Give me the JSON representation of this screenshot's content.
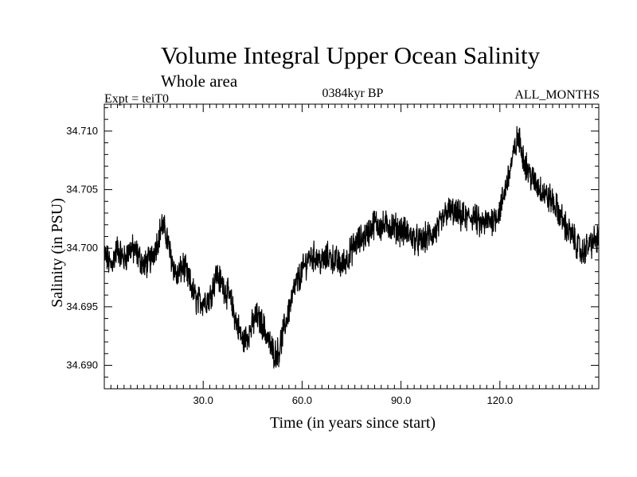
{
  "chart_data": {
    "type": "line",
    "title": "Volume Integral Upper Ocean Salinity",
    "subtitle": "Whole area",
    "experiment_label": "Expt = teiT0",
    "period_label": "0384kyr BP",
    "months_label": "ALL_MONTHS",
    "xlabel": "Time (in years since start)",
    "ylabel": "Salinity (in PSU)",
    "xlim": [
      0,
      150
    ],
    "ylim": [
      34.688,
      34.7123
    ],
    "xticks": [
      30,
      60,
      90,
      120
    ],
    "xtick_labels": [
      "30.0",
      "60.0",
      "90.0",
      "120.0"
    ],
    "yticks": [
      34.69,
      34.695,
      34.7,
      34.705,
      34.71
    ],
    "ytick_labels": [
      "34.690",
      "34.695",
      "34.700",
      "34.705",
      "34.710"
    ],
    "line_color": "#000000",
    "series": [
      {
        "name": "Salinity",
        "x": [
          0,
          2,
          4,
          6,
          8,
          10,
          12,
          14,
          16,
          17.5,
          19,
          20,
          22,
          24,
          26,
          28,
          30,
          32,
          34,
          36,
          38,
          40,
          42,
          44,
          46,
          48,
          50,
          51,
          52,
          53,
          54,
          56,
          58,
          60,
          62,
          64,
          66,
          68,
          70,
          72,
          74,
          76,
          78,
          80,
          82,
          84,
          86,
          88,
          90,
          92,
          94,
          96,
          98,
          100,
          102,
          104,
          106,
          108,
          110,
          112,
          114,
          116,
          118,
          120,
          122,
          124,
          125.5,
          127,
          128,
          130,
          132,
          134,
          136,
          138,
          140,
          142,
          144,
          145,
          146,
          148,
          150
        ],
        "y": [
          34.6995,
          34.6985,
          34.7,
          34.699,
          34.7,
          34.6995,
          34.6985,
          34.699,
          34.7005,
          34.702,
          34.701,
          34.6995,
          34.6975,
          34.6985,
          34.697,
          34.6955,
          34.6955,
          34.6958,
          34.6978,
          34.6968,
          34.6958,
          34.6938,
          34.692,
          34.6928,
          34.6942,
          34.6935,
          34.692,
          34.6912,
          34.691,
          34.6912,
          34.6925,
          34.6948,
          34.6968,
          34.698,
          34.6992,
          34.6993,
          34.6988,
          34.6993,
          34.699,
          34.6985,
          34.6993,
          34.7003,
          34.7008,
          34.7013,
          34.7022,
          34.7018,
          34.702,
          34.7018,
          34.7015,
          34.7013,
          34.7008,
          34.7005,
          34.701,
          34.7012,
          34.702,
          34.7032,
          34.703,
          34.7027,
          34.7025,
          34.7028,
          34.702,
          34.7022,
          34.7025,
          34.7032,
          34.7055,
          34.7078,
          34.7095,
          34.708,
          34.707,
          34.7058,
          34.7052,
          34.7045,
          34.704,
          34.703,
          34.7018,
          34.701,
          34.7,
          34.6995,
          34.7,
          34.7005,
          34.7008
        ]
      }
    ]
  }
}
